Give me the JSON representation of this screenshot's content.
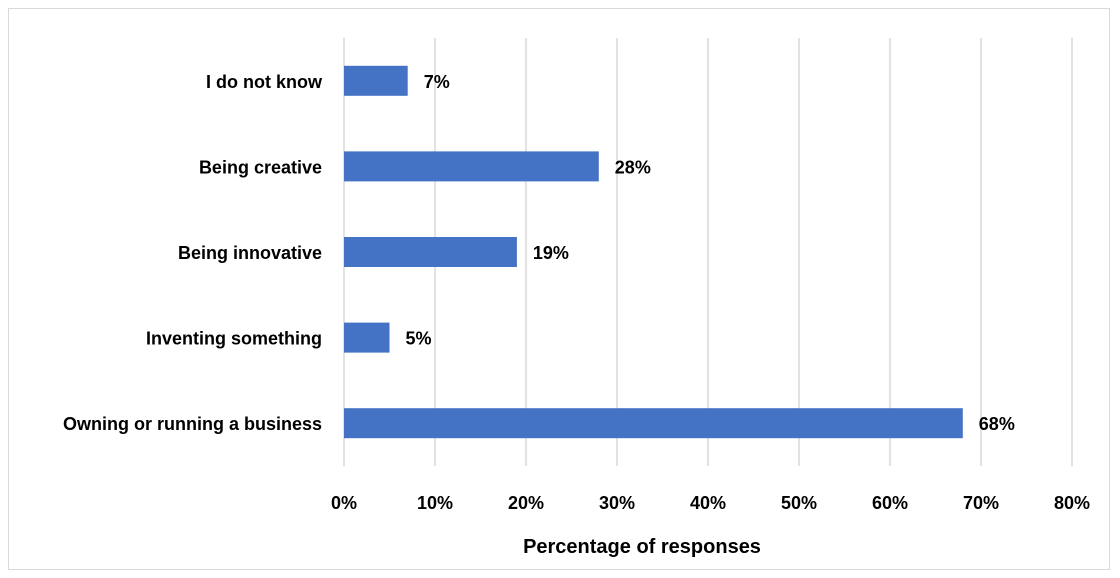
{
  "chart_data": {
    "type": "bar",
    "orientation": "horizontal",
    "categories": [
      "I do not know",
      "Being creative",
      "Being innovative",
      "Inventing something",
      "Owning or running a business"
    ],
    "values": [
      7,
      28,
      19,
      5,
      68
    ],
    "data_labels": [
      "7%",
      "28%",
      "19%",
      "5%",
      "68%"
    ],
    "title": "",
    "xlabel": "Percentage of responses",
    "ylabel": "",
    "xlim": [
      0,
      80
    ],
    "xticks": [
      0,
      10,
      20,
      30,
      40,
      50,
      60,
      70,
      80
    ],
    "xtick_labels": [
      "0%",
      "10%",
      "20%",
      "30%",
      "40%",
      "50%",
      "60%",
      "70%",
      "80%"
    ],
    "grid": "vertical",
    "legend": "none",
    "colors": {
      "bar": "#4472c4",
      "grid": "#d9d9d9",
      "text": "#000000",
      "border": "#d9d9d9"
    }
  }
}
